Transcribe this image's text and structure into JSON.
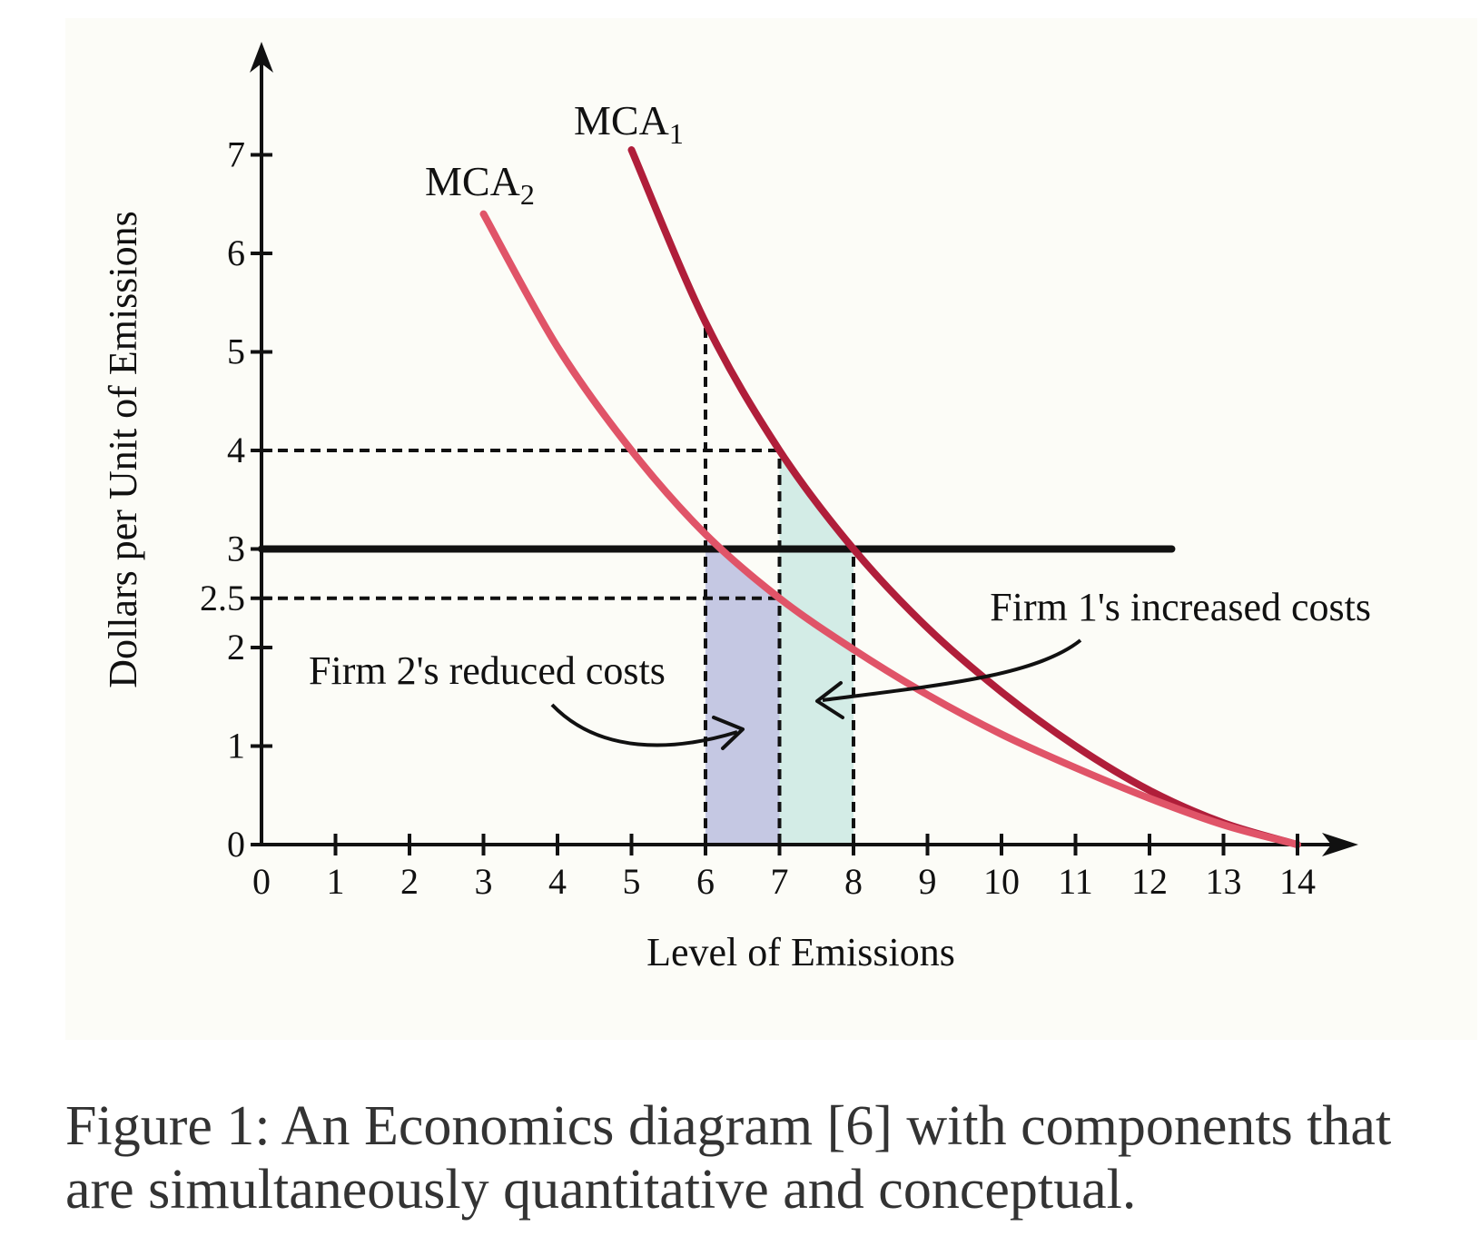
{
  "chart_data": {
    "type": "line",
    "xlabel": "Level of Emissions",
    "ylabel": "Dollars per Unit of Emissions",
    "xlim": [
      0,
      14
    ],
    "ylim": [
      0,
      7.8
    ],
    "x_ticks": [
      0,
      1,
      2,
      3,
      4,
      5,
      6,
      7,
      8,
      9,
      10,
      11,
      12,
      13,
      14
    ],
    "y_ticks": [
      0,
      1,
      2,
      2.5,
      3,
      4,
      5,
      6,
      7
    ],
    "y_tick_labels": [
      "0",
      "1",
      "2",
      "2.5",
      "3",
      "4",
      "5",
      "6",
      "7"
    ],
    "x_tick_labels": [
      "0",
      "1",
      "2",
      "3",
      "4",
      "5",
      "6",
      "7",
      "8",
      "9",
      "10",
      "11",
      "12",
      "13",
      "14"
    ],
    "grid": false,
    "series": [
      {
        "name": "MCA",
        "subscript": "1",
        "color": "#b01e3a",
        "x": [
          5,
          6,
          7,
          8,
          9,
          10,
          11,
          12,
          13,
          14
        ],
        "y": [
          7.05,
          5.3,
          4.0,
          3.0,
          2.2,
          1.55,
          1.0,
          0.55,
          0.22,
          0.0
        ]
      },
      {
        "name": "MCA",
        "subscript": "2",
        "color": "#e05468",
        "x": [
          3,
          4,
          5,
          6,
          7,
          8,
          9,
          10,
          11,
          12,
          13,
          14
        ],
        "y": [
          6.4,
          5.05,
          4.0,
          3.15,
          2.5,
          1.98,
          1.52,
          1.12,
          0.78,
          0.47,
          0.2,
          0.0
        ]
      }
    ],
    "horizontal_line": {
      "y": 3,
      "x_start": 0,
      "x_end": 12.3,
      "color": "#111111"
    },
    "reference_lines": [
      {
        "type": "horizontal",
        "y": 4,
        "x_start": 0,
        "x_end": 7
      },
      {
        "type": "horizontal",
        "y": 2.5,
        "x_start": 0,
        "x_end": 7
      },
      {
        "type": "vertical",
        "x": 6,
        "y_start": 0,
        "y_end": 5.3
      },
      {
        "type": "vertical",
        "x": 7,
        "y_start": 0,
        "y_end": 4.0
      },
      {
        "type": "vertical",
        "x": 8,
        "y_start": 0,
        "y_end": 3.0
      }
    ],
    "shaded_regions": [
      {
        "label": "Firm 2's reduced costs",
        "color": "#c5c8e3",
        "x_start": 6,
        "x_end": 7,
        "top": "MCA2"
      },
      {
        "label": "Firm 1's increased costs",
        "color": "#d3ece6",
        "x_start": 7,
        "x_end": 8,
        "top": "MCA1"
      }
    ],
    "annotations": [
      {
        "text": "Firm 2's reduced costs",
        "x": 3.2,
        "y": 1.7
      },
      {
        "text": "Firm 1's increased costs",
        "x": 9.6,
        "y": 2.35
      }
    ]
  },
  "caption": "Figure 1: An Economics diagram [6] with components that are simultaneously quantitative and conceptual."
}
